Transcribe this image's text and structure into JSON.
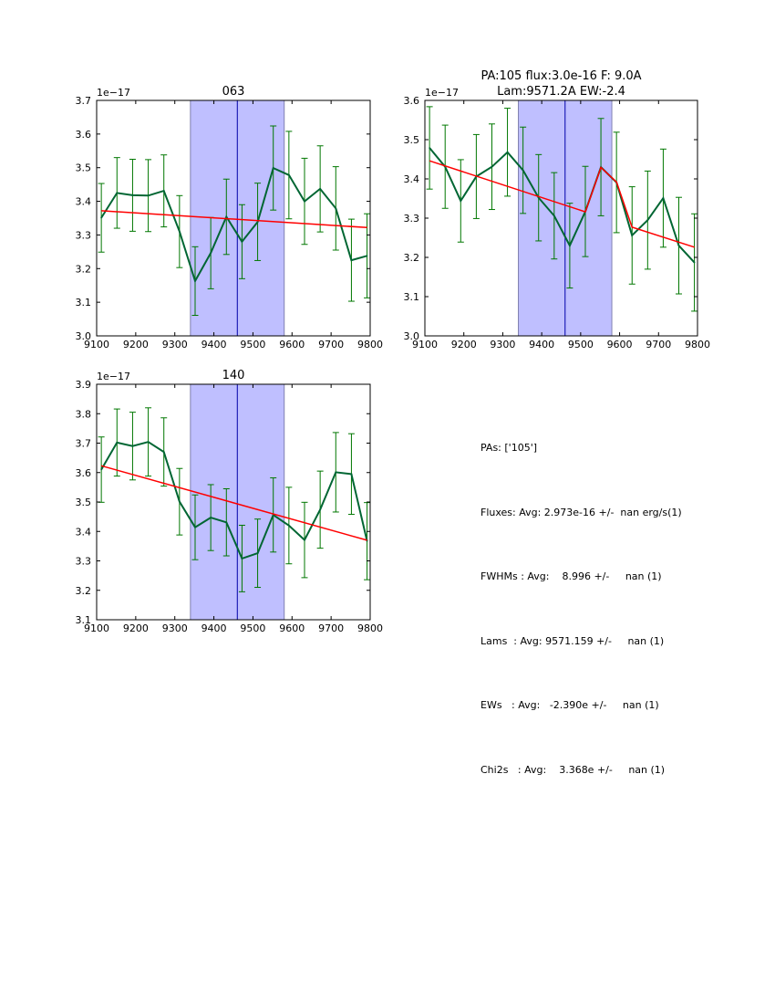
{
  "chart_data": [
    {
      "type": "line",
      "title": "063",
      "offset_label": "1e−17",
      "xlim": [
        9100,
        9800
      ],
      "ylim": [
        3.0,
        3.7
      ],
      "xticks": [
        9100,
        9200,
        9300,
        9400,
        9500,
        9600,
        9700,
        9800
      ],
      "yticks": [
        3.0,
        3.1,
        3.2,
        3.3,
        3.4,
        3.5,
        3.6,
        3.7
      ],
      "xtick_labels": [
        "9100",
        "9200",
        "9300",
        "9400",
        "9500",
        "9600",
        "9700",
        "9800"
      ],
      "ytick_labels": [
        "3.0",
        "3.1",
        "3.2",
        "3.3",
        "3.4",
        "3.5",
        "3.6",
        "3.7"
      ],
      "shaded_region": [
        9340,
        9580
      ],
      "center_line": 9460,
      "x": [
        9112,
        9152,
        9192,
        9232,
        9272,
        9312,
        9352,
        9392,
        9432,
        9472,
        9512,
        9552,
        9592,
        9632,
        9672,
        9712,
        9752,
        9792
      ],
      "series": [
        {
          "name": "flux",
          "color": "#006633",
          "values": [
            3.351,
            3.425,
            3.418,
            3.417,
            3.431,
            3.31,
            3.163,
            3.246,
            3.354,
            3.28,
            3.339,
            3.499,
            3.478,
            3.4,
            3.437,
            3.379,
            3.225,
            3.238
          ],
          "errors": [
            0.102,
            0.105,
            0.107,
            0.107,
            0.107,
            0.107,
            0.102,
            0.106,
            0.112,
            0.11,
            0.115,
            0.125,
            0.13,
            0.128,
            0.128,
            0.124,
            0.122,
            0.125
          ]
        },
        {
          "name": "fit",
          "color": "#ff0000",
          "x": [
            9112,
            9792
          ],
          "values": [
            3.372,
            3.322
          ]
        }
      ]
    },
    {
      "type": "line",
      "title": "PA:105 flux:3.0e-16 F: 9.0A\nLam:9571.2A EW:-2.4",
      "title_lines": [
        "PA:105 flux:3.0e-16 F: 9.0A",
        "Lam:9571.2A EW:-2.4"
      ],
      "offset_label": "1e−17",
      "xlim": [
        9100,
        9800
      ],
      "ylim": [
        3.0,
        3.6
      ],
      "xticks": [
        9100,
        9200,
        9300,
        9400,
        9500,
        9600,
        9700,
        9800
      ],
      "yticks": [
        3.0,
        3.1,
        3.2,
        3.3,
        3.4,
        3.5,
        3.6
      ],
      "xtick_labels": [
        "9100",
        "9200",
        "9300",
        "9400",
        "9500",
        "9600",
        "9700",
        "9800"
      ],
      "ytick_labels": [
        "3.0",
        "3.1",
        "3.2",
        "3.3",
        "3.4",
        "3.5",
        "3.6"
      ],
      "shaded_region": [
        9340,
        9580
      ],
      "center_line": 9460,
      "x": [
        9112,
        9152,
        9192,
        9232,
        9272,
        9312,
        9352,
        9392,
        9432,
        9472,
        9512,
        9552,
        9592,
        9632,
        9672,
        9712,
        9752,
        9792
      ],
      "series": [
        {
          "name": "flux",
          "color": "#006633",
          "values": [
            3.479,
            3.431,
            3.344,
            3.406,
            3.431,
            3.468,
            3.422,
            3.352,
            3.306,
            3.23,
            3.317,
            3.43,
            3.391,
            3.256,
            3.295,
            3.351,
            3.23,
            3.187
          ],
          "errors": [
            0.105,
            0.106,
            0.105,
            0.107,
            0.109,
            0.112,
            0.11,
            0.11,
            0.11,
            0.108,
            0.115,
            0.124,
            0.128,
            0.124,
            0.125,
            0.125,
            0.123,
            0.124
          ]
        },
        {
          "name": "fit",
          "color": "#ff0000",
          "x": [
            9112,
            9512,
            9552,
            9592,
            9632,
            9792
          ],
          "values": [
            3.446,
            3.316,
            3.429,
            3.392,
            3.277,
            3.226
          ]
        }
      ]
    },
    {
      "type": "line",
      "title": "140",
      "offset_label": "1e−17",
      "xlim": [
        9100,
        9800
      ],
      "ylim": [
        3.1,
        3.9
      ],
      "xticks": [
        9100,
        9200,
        9300,
        9400,
        9500,
        9600,
        9700,
        9800
      ],
      "yticks": [
        3.1,
        3.2,
        3.3,
        3.4,
        3.5,
        3.6,
        3.7,
        3.8,
        3.9
      ],
      "xtick_labels": [
        "9100",
        "9200",
        "9300",
        "9400",
        "9500",
        "9600",
        "9700",
        "9800"
      ],
      "ytick_labels": [
        "3.1",
        "3.2",
        "3.3",
        "3.4",
        "3.5",
        "3.6",
        "3.7",
        "3.8",
        "3.9"
      ],
      "shaded_region": [
        9340,
        9580
      ],
      "center_line": 9460,
      "x": [
        9112,
        9152,
        9192,
        9232,
        9272,
        9312,
        9352,
        9392,
        9432,
        9472,
        9512,
        9552,
        9592,
        9632,
        9672,
        9712,
        9752,
        9792
      ],
      "series": [
        {
          "name": "flux",
          "color": "#006633",
          "values": [
            3.61,
            3.702,
            3.69,
            3.704,
            3.67,
            3.501,
            3.414,
            3.447,
            3.431,
            3.308,
            3.326,
            3.456,
            3.42,
            3.371,
            3.474,
            3.601,
            3.595,
            3.367
          ],
          "errors": [
            0.111,
            0.114,
            0.115,
            0.116,
            0.116,
            0.113,
            0.11,
            0.112,
            0.114,
            0.113,
            0.116,
            0.126,
            0.13,
            0.128,
            0.131,
            0.135,
            0.137,
            0.131
          ]
        },
        {
          "name": "fit",
          "color": "#ff0000",
          "x": [
            9112,
            9792
          ],
          "values": [
            3.623,
            3.37
          ]
        }
      ]
    }
  ],
  "stats": {
    "lines": [
      "PAs: ['105']",
      "Fluxes: Avg: 2.973e-16 +/-  nan erg/s(1)",
      "FWHMs : Avg:    8.996 +/-     nan (1)",
      "Lams  : Avg: 9571.159 +/-     nan (1)",
      "EWs   : Avg:   -2.390e +/-     nan (1)",
      "Chi2s   : Avg:    3.368e +/-     nan (1)"
    ]
  },
  "colors": {
    "shade": "#bfbfff",
    "shade_edge": "#8080b0",
    "center_line": "#0000aa",
    "data": "#006633",
    "errorbar": "#007700",
    "fit": "#ff0000"
  }
}
